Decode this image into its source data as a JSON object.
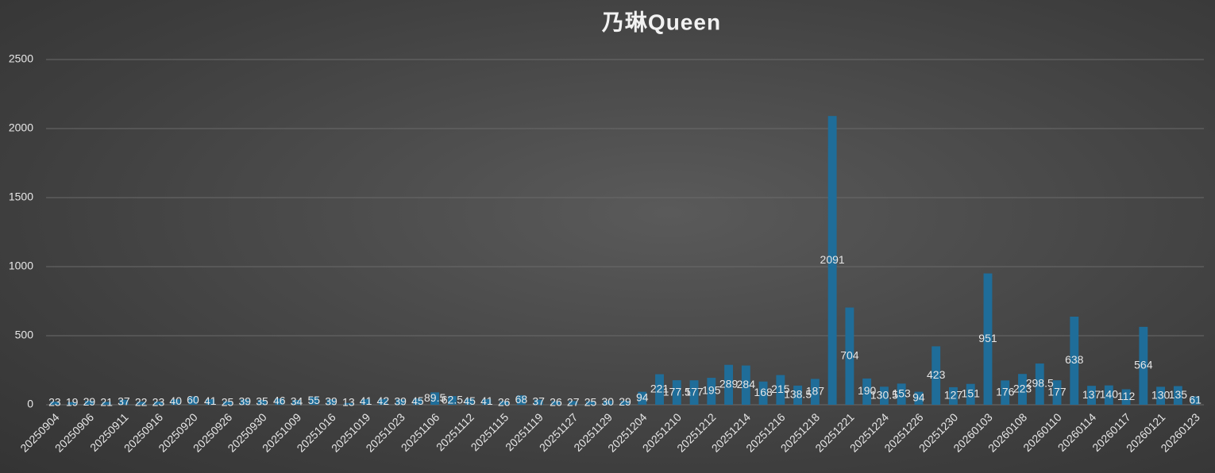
{
  "chart_data": {
    "type": "bar",
    "title": "乃琳Queen",
    "categories": [
      "20250904",
      null,
      "20250906",
      null,
      "20250911",
      null,
      "20250916",
      null,
      "20250920",
      null,
      "20250926",
      null,
      "20250930",
      null,
      "20251009",
      null,
      "20251016",
      null,
      "20251019",
      null,
      "20251023",
      null,
      "20251106",
      null,
      "20251112",
      null,
      "20251115",
      null,
      "20251119",
      null,
      "20251127",
      null,
      "20251129",
      null,
      "20251204",
      null,
      "20251210",
      null,
      "20251212",
      null,
      "20251214",
      null,
      "20251216",
      null,
      "20251218",
      null,
      "20251221",
      null,
      "20251224",
      null,
      "20251226",
      null,
      "20251230",
      null,
      "20260103",
      null,
      "20260108",
      null,
      "20260110",
      null,
      "20260114",
      null,
      "20260117",
      null,
      "20260121",
      null,
      "20260123"
    ],
    "values": [
      23,
      19,
      29,
      21,
      37,
      22,
      23,
      40,
      60,
      41,
      25,
      39,
      35,
      46,
      34,
      55,
      39,
      13,
      41,
      42,
      39,
      45,
      89.5,
      62.5,
      45,
      41,
      26,
      68,
      37,
      26,
      27,
      25,
      30,
      29,
      94,
      221,
      177.5,
      177,
      195,
      289,
      284,
      168,
      215,
      138.5,
      187,
      2091,
      704,
      190,
      130.5,
      153,
      94,
      423,
      127,
      151,
      951,
      176,
      223,
      298.5,
      177,
      638,
      137,
      140,
      112,
      564,
      130,
      135,
      61
    ],
    "color": "#1f6d99",
    "ylim": [
      0,
      2500
    ],
    "yticks": [
      0,
      500,
      1000,
      1500,
      2000,
      2500
    ],
    "grid": true
  }
}
